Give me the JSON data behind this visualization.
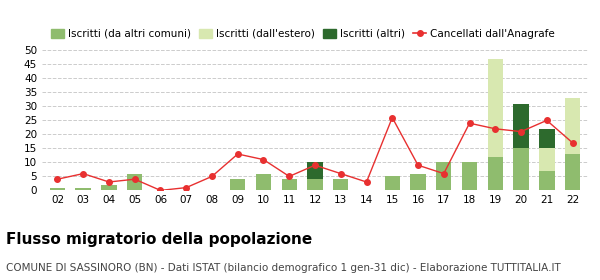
{
  "years": [
    "02",
    "03",
    "04",
    "05",
    "06",
    "07",
    "08",
    "09",
    "10",
    "11",
    "12",
    "13",
    "14",
    "15",
    "16",
    "17",
    "18",
    "19",
    "20",
    "21",
    "22"
  ],
  "iscritti_altri_comuni": [
    1,
    1,
    2,
    6,
    0,
    0,
    0,
    4,
    6,
    4,
    4,
    4,
    0,
    5,
    6,
    10,
    10,
    12,
    15,
    7,
    13
  ],
  "iscritti_estero": [
    0,
    0,
    0,
    0,
    0,
    0,
    0,
    0,
    0,
    0,
    0,
    0,
    0,
    0,
    0,
    0,
    0,
    35,
    0,
    8,
    20
  ],
  "iscritti_altri": [
    0,
    0,
    0,
    0,
    0,
    0,
    0,
    0,
    0,
    0,
    6,
    0,
    0,
    0,
    0,
    0,
    0,
    0,
    16,
    7,
    0
  ],
  "cancellati": [
    4,
    6,
    3,
    4,
    0,
    1,
    5,
    13,
    11,
    5,
    9,
    6,
    3,
    26,
    9,
    6,
    24,
    22,
    21,
    25,
    17
  ],
  "ylim": [
    0,
    50
  ],
  "yticks": [
    0,
    5,
    10,
    15,
    20,
    25,
    30,
    35,
    40,
    45,
    50
  ],
  "color_altri_comuni": "#8fbc6e",
  "color_estero": "#d8e8b0",
  "color_altri": "#2d6a2d",
  "color_cancellati": "#e83030",
  "title": "Flusso migratorio della popolazione",
  "subtitle": "COMUNE DI SASSINORO (BN) - Dati ISTAT (bilancio demografico 1 gen-31 dic) - Elaborazione TUTTITALIA.IT",
  "legend_labels": [
    "Iscritti (da altri comuni)",
    "Iscritti (dall'estero)",
    "Iscritti (altri)",
    "Cancellati dall'Anagrafe"
  ],
  "title_fontsize": 11,
  "subtitle_fontsize": 7.5,
  "legend_fontsize": 7.5
}
